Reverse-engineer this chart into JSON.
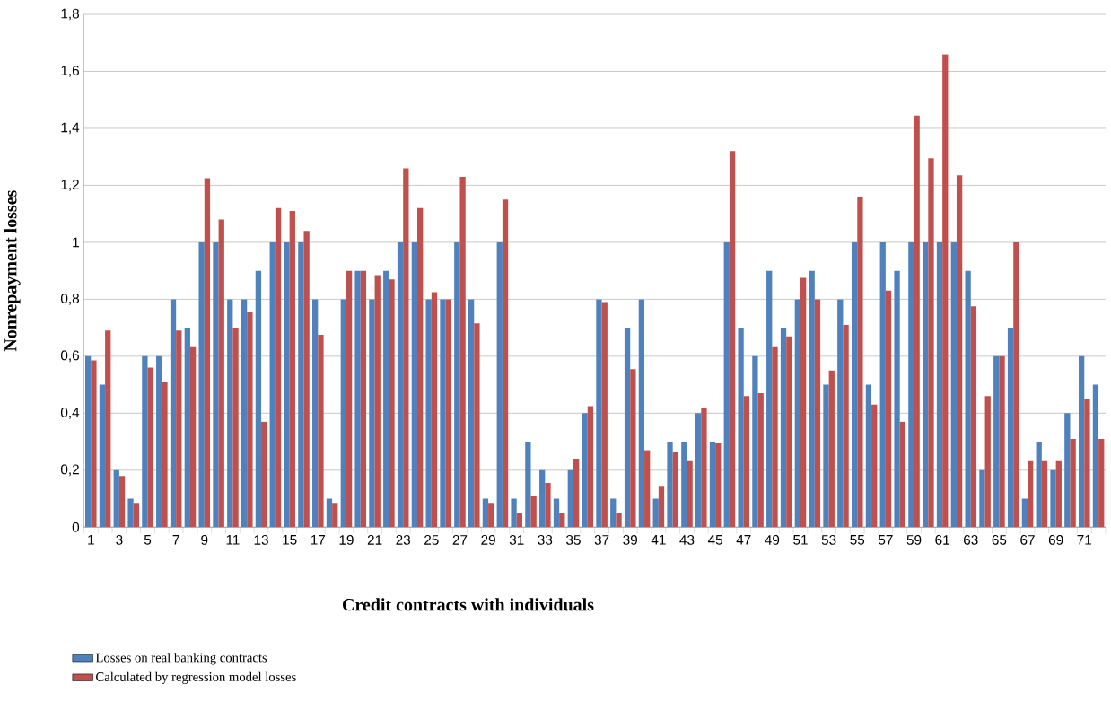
{
  "chart_data": {
    "type": "bar",
    "xlabel": "Credit contracts with individuals",
    "ylabel": "Nonrepayment losses",
    "categories": [
      "1",
      null,
      "3",
      null,
      "5",
      null,
      "7",
      null,
      "9",
      null,
      "11",
      null,
      "13",
      null,
      "15",
      null,
      "17",
      null,
      "19",
      null,
      "21",
      null,
      "23",
      null,
      "25",
      null,
      "27",
      null,
      "29",
      null,
      "31",
      null,
      "33",
      null,
      "35",
      null,
      "37",
      null,
      "39",
      null,
      "41",
      null,
      "43",
      null,
      "45",
      null,
      "47",
      null,
      "49",
      null,
      "51",
      null,
      "53",
      null,
      "55",
      null,
      "57",
      null,
      "59",
      null,
      "61",
      null,
      "63",
      null,
      "65",
      null,
      "67",
      null,
      "69",
      null,
      "71",
      null
    ],
    "series": [
      {
        "name": "Losses on real banking contracts",
        "color": "#4f81bd",
        "values": [
          0.6,
          0.5,
          0.2,
          0.1,
          0.6,
          0.6,
          0.8,
          0.7,
          1.0,
          1.0,
          0.8,
          0.8,
          0.9,
          1.0,
          1.0,
          1.0,
          0.8,
          0.1,
          0.8,
          0.9,
          0.8,
          0.9,
          1.0,
          1.0,
          0.8,
          0.8,
          1.0,
          0.8,
          0.1,
          1.0,
          0.1,
          0.3,
          0.2,
          0.1,
          0.2,
          0.4,
          0.8,
          0.1,
          0.7,
          0.8,
          0.1,
          0.3,
          0.3,
          0.4,
          0.3,
          1.0,
          0.7,
          0.6,
          0.9,
          0.7,
          0.8,
          0.9,
          0.5,
          0.8,
          1.0,
          0.5,
          1.0,
          0.9,
          1.0,
          1.0,
          1.0,
          1.0,
          0.9,
          0.2,
          0.6,
          0.7,
          0.1,
          0.3,
          0.2,
          0.4,
          0.6,
          0.5
        ]
      },
      {
        "name": "Calculated by regression model losses",
        "color": "#c0504d",
        "values": [
          0.585,
          0.69,
          0.18,
          0.085,
          0.56,
          0.51,
          0.69,
          0.635,
          1.225,
          1.08,
          0.7,
          0.755,
          0.37,
          1.12,
          1.11,
          1.04,
          0.675,
          0.085,
          0.9,
          0.9,
          0.885,
          0.87,
          1.26,
          1.12,
          0.825,
          0.8,
          1.23,
          0.715,
          0.085,
          1.15,
          0.05,
          0.11,
          0.155,
          0.05,
          0.24,
          0.425,
          0.79,
          0.05,
          0.555,
          0.27,
          0.145,
          0.265,
          0.235,
          0.42,
          0.295,
          1.32,
          0.46,
          0.47,
          0.635,
          0.67,
          0.875,
          0.8,
          0.55,
          0.71,
          1.16,
          0.43,
          0.83,
          0.37,
          1.445,
          1.295,
          1.66,
          1.235,
          0.775,
          0.46,
          0.6,
          1.0,
          0.235,
          0.235,
          0.235,
          0.31,
          0.45,
          0.31
        ]
      }
    ],
    "ylim": [
      0,
      1.8
    ],
    "yticks": [
      0,
      {
        "value": 0.2,
        "label": "0,2"
      },
      {
        "value": 0.4,
        "label": "0,4"
      },
      {
        "value": 0.6,
        "label": "0,6"
      },
      {
        "value": 0.8,
        "label": "0,8"
      },
      1,
      {
        "value": 1.2,
        "label": "1,2"
      },
      {
        "value": 1.4,
        "label": "1,4"
      },
      {
        "value": 1.6,
        "label": "1,6"
      },
      {
        "value": 1.8,
        "label": "1,8"
      }
    ],
    "grid": "y",
    "legend": "bottom left"
  }
}
